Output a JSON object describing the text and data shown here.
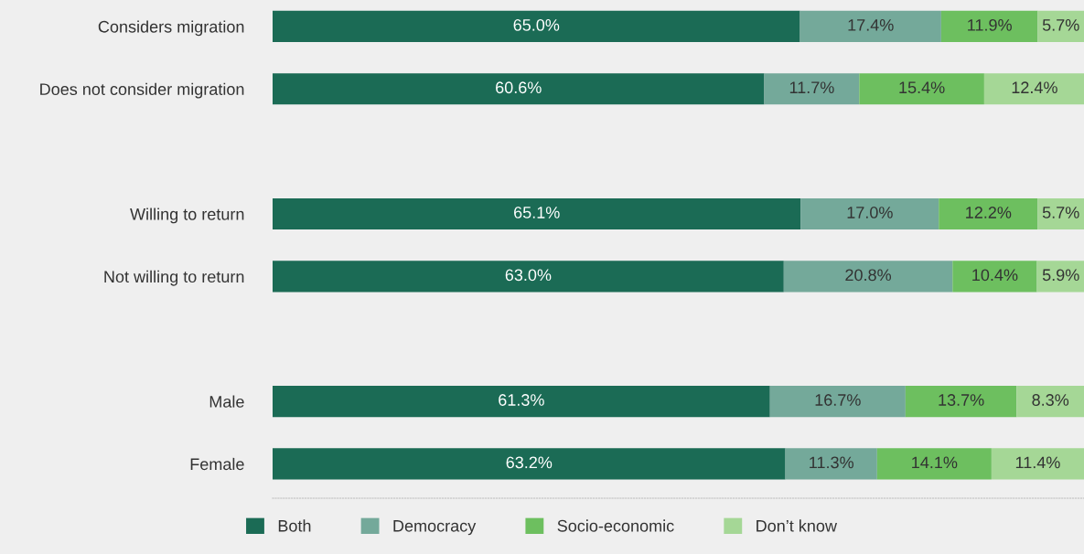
{
  "chart_data": {
    "type": "bar",
    "orientation": "horizontal",
    "stacked": true,
    "categories": [
      "Considers migration",
      "Does not consider migration",
      null,
      "Willing to return",
      "Not willing to return",
      null,
      "Male",
      "Female"
    ],
    "xlim": [
      0,
      100
    ],
    "tick_labels": "y",
    "grid": false,
    "legend": "bottom",
    "series": [
      {
        "name": "Both",
        "color": "#1b6b55",
        "values": [
          65.0,
          60.6,
          null,
          65.1,
          63.0,
          null,
          61.3,
          63.2
        ],
        "value_labels": [
          "65.0%",
          "60.6%",
          null,
          "65.1%",
          "63.0%",
          null,
          "61.3%",
          "63.2%"
        ]
      },
      {
        "name": "Democracy",
        "color": "#74a99a",
        "values": [
          17.4,
          11.7,
          null,
          17.0,
          20.8,
          null,
          16.7,
          11.3
        ],
        "value_labels": [
          "17.4%",
          "11.7%",
          null,
          "17.0%",
          "20.8%",
          null,
          "16.7%",
          "11.3%"
        ]
      },
      {
        "name": "Socio-economic",
        "color": "#6dbf5f",
        "values": [
          11.9,
          15.4,
          null,
          12.2,
          10.4,
          null,
          13.7,
          14.1
        ],
        "value_labels": [
          "11.9%",
          "15.4%",
          null,
          "12.2%",
          "10.4%",
          null,
          "13.7%",
          "14.1%"
        ]
      },
      {
        "name": "Don’t know",
        "color": "#a5d796",
        "values": [
          5.7,
          12.4,
          null,
          5.7,
          5.9,
          null,
          8.3,
          11.4
        ],
        "value_labels": [
          "5.7%",
          "12.4%",
          null,
          "5.7%",
          "5.9%",
          null,
          "8.3%",
          "11.4%"
        ]
      }
    ]
  }
}
